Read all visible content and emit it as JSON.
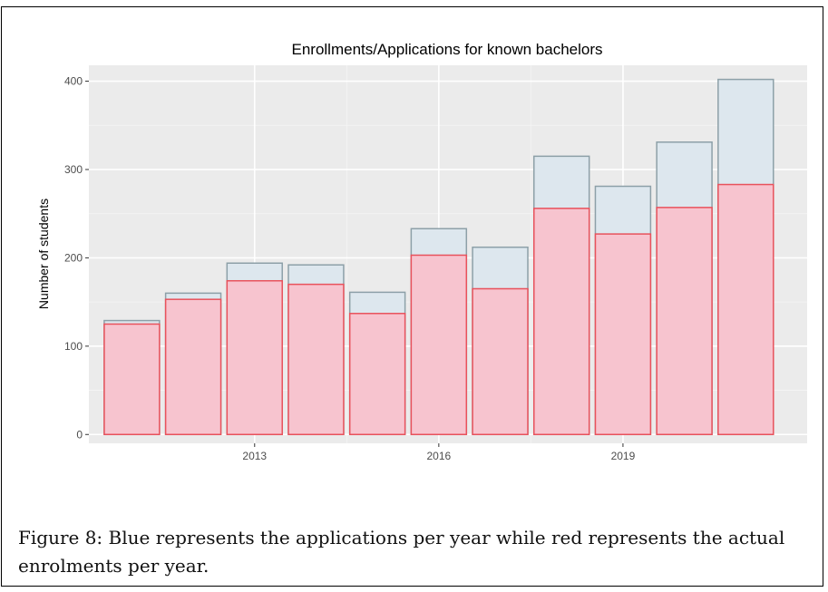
{
  "chart_data": {
    "type": "bar",
    "title": "Enrollments/Applications for known bachelors",
    "xlabel": "",
    "ylabel": "Number of students",
    "x": [
      2011,
      2012,
      2013,
      2014,
      2015,
      2016,
      2017,
      2018,
      2019,
      2020,
      2021
    ],
    "xticks": [
      2013,
      2016,
      2019
    ],
    "xlim": [
      2010.3,
      2022.0
    ],
    "ylim": [
      -10,
      418
    ],
    "yticks": [
      0,
      100,
      200,
      300,
      400
    ],
    "grid": true,
    "overlap": true,
    "series": [
      {
        "values": [
          129,
          160,
          194,
          192,
          161,
          233,
          212,
          315,
          281,
          331,
          402
        ],
        "color": "#dde7ee",
        "stroke": "#8da0a8"
      },
      {
        "values": [
          125,
          153,
          174,
          170,
          137,
          203,
          165,
          256,
          227,
          257,
          283
        ],
        "color": "#f7c4cf",
        "stroke": "#e8525c"
      }
    ]
  },
  "caption": "Figure 8: Blue represents the applications per year while red represents the actual enrolments per year."
}
